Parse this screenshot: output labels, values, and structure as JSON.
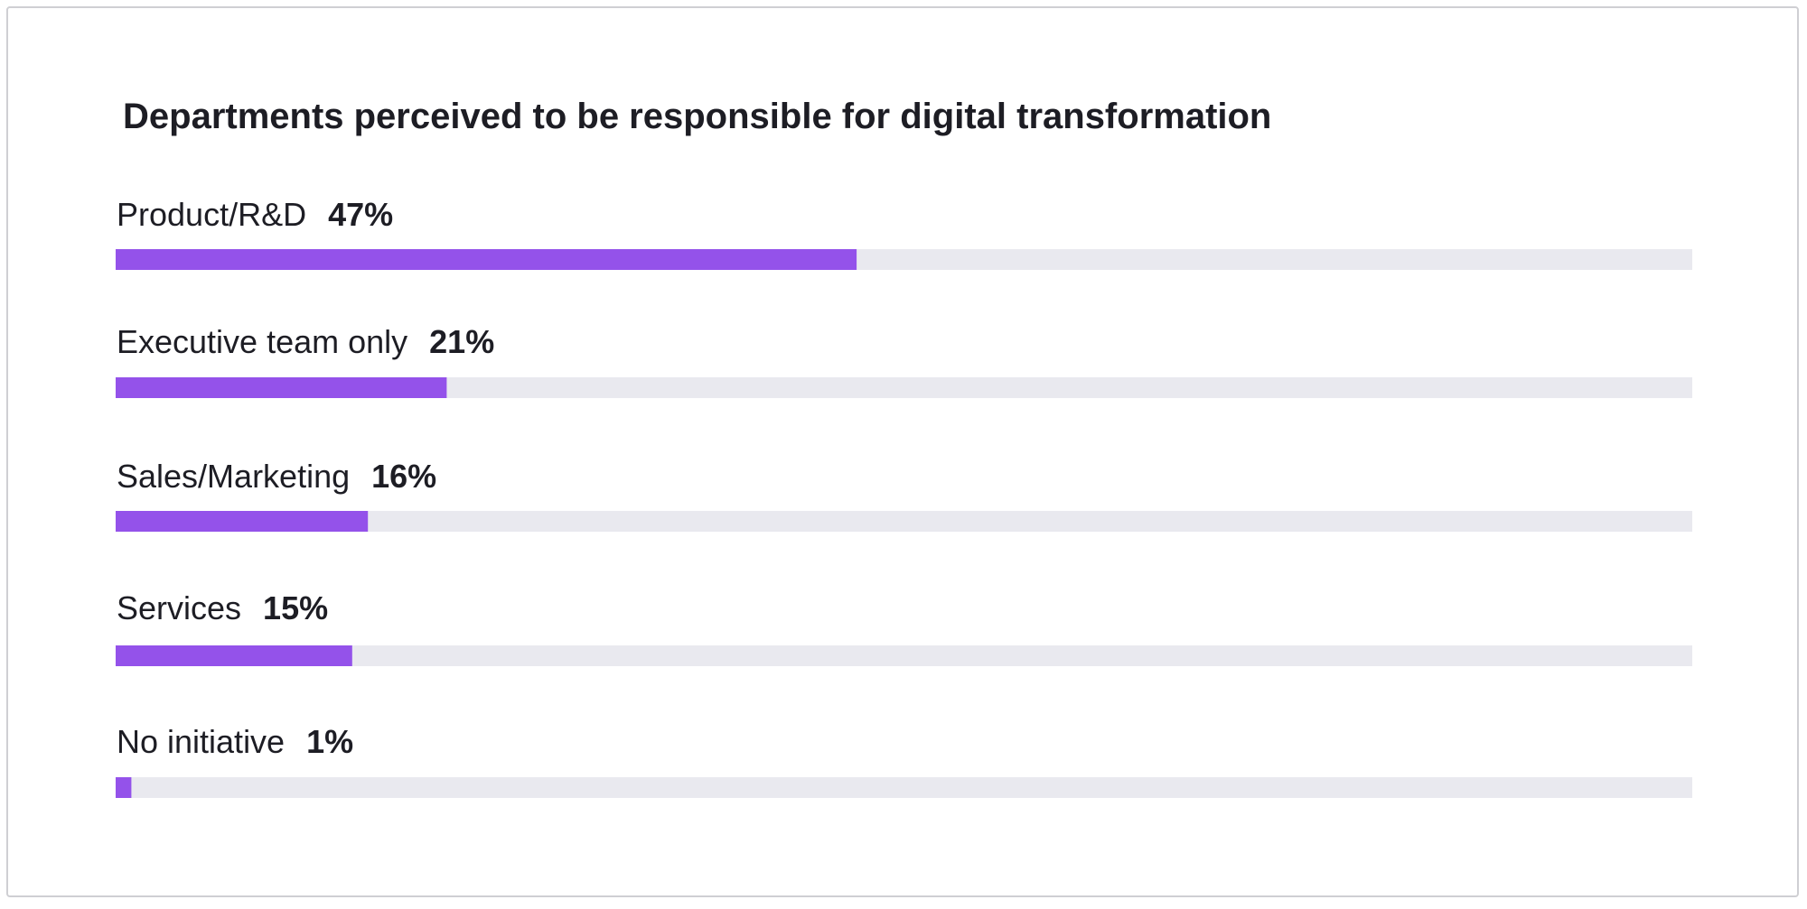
{
  "colors": {
    "bar": "#9452EA",
    "track": "#E9E9EF",
    "text": "#1D1D24",
    "border": "#CFCFD3"
  },
  "chart_data": {
    "type": "bar",
    "orientation": "horizontal",
    "title": "Departments perceived to be responsible for digital transformation",
    "categories": [
      "Product/R&D",
      "Executive team only",
      "Sales/Marketing",
      "Services",
      "No initiative"
    ],
    "values": [
      47,
      21,
      16,
      15,
      1
    ],
    "value_labels": [
      "47%",
      "21%",
      "16%",
      "15%",
      "1%"
    ],
    "unit": "%",
    "xlim": [
      0,
      100
    ],
    "grid": false,
    "legend": "none"
  }
}
